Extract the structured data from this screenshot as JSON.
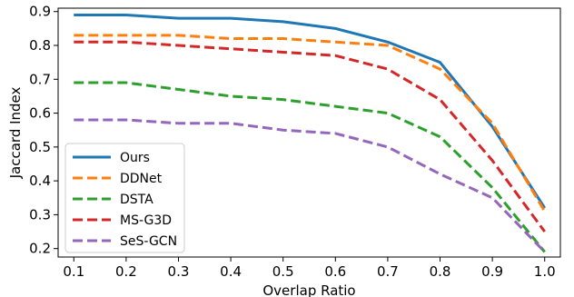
{
  "chart_data": {
    "type": "line",
    "title": "",
    "xlabel": "Overlap Ratio",
    "ylabel": "Jaccard Index",
    "x": [
      0.1,
      0.2,
      0.3,
      0.4,
      0.5,
      0.6,
      0.7,
      0.8,
      0.9,
      1.0
    ],
    "x_ticks": [
      "0.1",
      "0.2",
      "0.3",
      "0.4",
      "0.5",
      "0.6",
      "0.7",
      "0.8",
      "0.9",
      "1.0"
    ],
    "y_ticks": [
      "0.2",
      "0.3",
      "0.4",
      "0.5",
      "0.6",
      "0.7",
      "0.8",
      "0.9"
    ],
    "xlim": [
      0.07,
      1.03
    ],
    "ylim": [
      0.175,
      0.91
    ],
    "grid": false,
    "legend_position": "lower-left",
    "series": [
      {
        "name": "Ours",
        "color": "#1f77b4",
        "dash": "solid",
        "values": [
          0.89,
          0.89,
          0.88,
          0.88,
          0.87,
          0.85,
          0.81,
          0.75,
          0.56,
          0.32
        ]
      },
      {
        "name": "DDNet",
        "color": "#ff7f0e",
        "dash": "dashed",
        "values": [
          0.83,
          0.83,
          0.83,
          0.82,
          0.82,
          0.81,
          0.8,
          0.73,
          0.57,
          0.31
        ]
      },
      {
        "name": "DSTA",
        "color": "#2ca02c",
        "dash": "dashed",
        "values": [
          0.69,
          0.69,
          0.67,
          0.65,
          0.64,
          0.62,
          0.6,
          0.53,
          0.38,
          0.19
        ]
      },
      {
        "name": "MS-G3D",
        "color": "#d62728",
        "dash": "dashed",
        "values": [
          0.81,
          0.81,
          0.8,
          0.79,
          0.78,
          0.77,
          0.73,
          0.64,
          0.46,
          0.25
        ]
      },
      {
        "name": "SeS-GCN",
        "color": "#9467bd",
        "dash": "dashed",
        "values": [
          0.58,
          0.58,
          0.57,
          0.57,
          0.55,
          0.54,
          0.5,
          0.42,
          0.35,
          0.19
        ]
      }
    ]
  }
}
